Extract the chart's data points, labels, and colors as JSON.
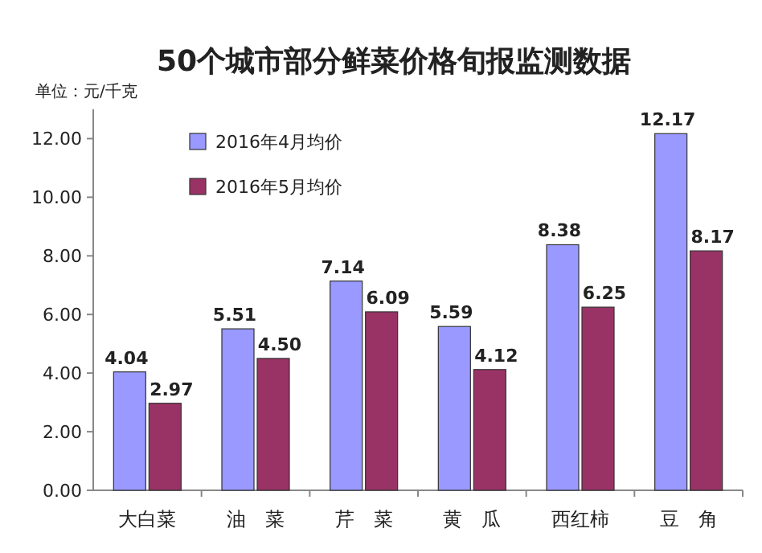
{
  "chart_data": {
    "type": "bar",
    "title": "50个城市部分鲜菜价格旬报监测数据",
    "ylabel": "单位：元/千克",
    "categories": [
      "大白菜",
      "油　菜",
      "芹　菜",
      "黄　瓜",
      "西红柿",
      "豆　角"
    ],
    "series": [
      {
        "name": "2016年4月均价",
        "color": "#9999ff",
        "values": [
          4.04,
          5.51,
          7.14,
          5.59,
          8.38,
          12.17
        ],
        "value_labels": [
          "4.04",
          "5.51",
          "7.14",
          "5.59",
          "8.38",
          "12.17"
        ]
      },
      {
        "name": "2016年5月均价",
        "color": "#993366",
        "values": [
          2.97,
          4.5,
          6.09,
          4.12,
          6.25,
          8.17
        ],
        "value_labels": [
          "2.97",
          "4.50",
          "6.09",
          "4.12",
          "6.25",
          "8.17"
        ]
      }
    ],
    "ylim": [
      0,
      13
    ],
    "yticks": [
      {
        "value": 0,
        "label": "0.00"
      },
      {
        "value": 2,
        "label": "2.00"
      },
      {
        "value": 4,
        "label": "4.00"
      },
      {
        "value": 6,
        "label": "6.00"
      },
      {
        "value": 8,
        "label": "8.00"
      },
      {
        "value": 10,
        "label": "10.00"
      },
      {
        "value": 12,
        "label": "12.00"
      }
    ],
    "legend": "top left"
  }
}
